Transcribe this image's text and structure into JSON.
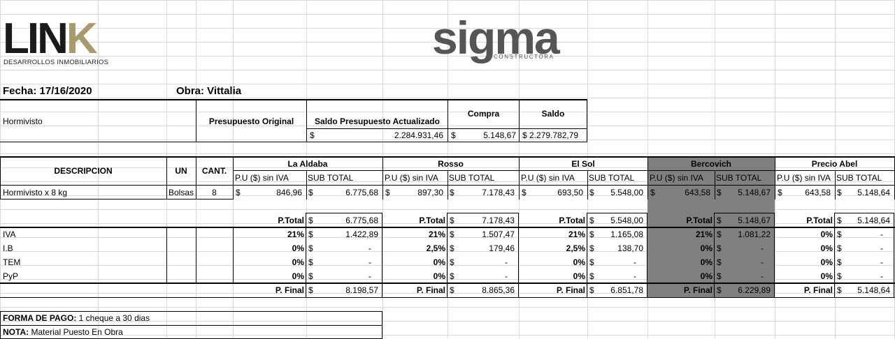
{
  "logos": {
    "link_main": "LIN",
    "link_k": "K",
    "link_sub": "DESARROLLOS INMOBILIARIOS",
    "sigma_main": "sigma",
    "sigma_sub": "CONSTRUCTORA"
  },
  "header": {
    "fecha": "Fecha: 17/16/2020",
    "obra": "Obra:  Vittalia"
  },
  "summary": {
    "item": "Hormivisto",
    "col_original": "Presupuesto Original",
    "col_saldo_act": "Saldo Presupuesto Actualizado",
    "col_compra": "Compra",
    "col_saldo": "Saldo",
    "currency": "$",
    "saldo_act_value": "2.284.931,46",
    "compra_value": "5.148,67",
    "saldo_value": "$ 2.279.782,79"
  },
  "table": {
    "col_desc": "DESCRIPCION",
    "col_un": "UN",
    "col_cant": "CANT.",
    "pu_label": "P.U ($) sin IVA",
    "sub_label": "SUB TOTAL",
    "currency": "$",
    "desc": "Hormivisto x 8 kg",
    "un": "Bolsas",
    "cant": "8",
    "row_labels": [
      "IVA",
      "I.B",
      "TEM",
      "PyP"
    ],
    "ptotal_label": "P.Total",
    "pfinal_label": "P. Final",
    "vendors": [
      {
        "name": "La Aldaba",
        "pu": "846,96",
        "sub": "6.775,68",
        "ptotal": "6.775,68",
        "pct": [
          "21%",
          "0%",
          "0%",
          "0%"
        ],
        "vals": [
          "1.422,89",
          "-",
          "-",
          "-"
        ],
        "pfinal": "8.198,57"
      },
      {
        "name": "Rosso",
        "pu": "897,30",
        "sub": "7.178,43",
        "ptotal": "7.178,43",
        "pct": [
          "21%",
          "2,5%",
          "0%",
          "0%"
        ],
        "vals": [
          "1.507,47",
          "179,46",
          "-",
          "-"
        ],
        "pfinal": "8.865,36"
      },
      {
        "name": "El Sol",
        "pu": "693,50",
        "sub": "5.548,00",
        "ptotal": "5.548,00",
        "pct": [
          "21%",
          "2,5%",
          "0%",
          "0%"
        ],
        "vals": [
          "1.165,08",
          "138,70",
          "-",
          "-"
        ],
        "pfinal": "6.851,78"
      },
      {
        "name": "Bercovich",
        "pu": "643,58",
        "sub": "5.148,67",
        "ptotal": "5.148,67",
        "pct": [
          "21%",
          "0%",
          "0%",
          "0%"
        ],
        "vals": [
          "1.081,22",
          "-",
          "-",
          "-"
        ],
        "pfinal": "6.229,89"
      },
      {
        "name": "Precio Abel",
        "pu": "643,58",
        "sub": "5.148,64",
        "ptotal": "5.148,64",
        "pct": [
          "0%",
          "0%",
          "0%",
          "0%"
        ],
        "vals": [
          "-",
          "-",
          "-",
          "-"
        ],
        "pfinal": "5.148,64"
      }
    ]
  },
  "footer": {
    "forma_label": "FORMA DE PAGO:",
    "forma_value": " 1 cheque a 30 dias",
    "nota_label": "NOTA:",
    "nota_value": " Material Puesto En Obra"
  },
  "colors": {
    "highlight": "#808080",
    "link_k": "#a89a6a",
    "sigma": "#555555",
    "sigma_accent": "#c0392b"
  }
}
